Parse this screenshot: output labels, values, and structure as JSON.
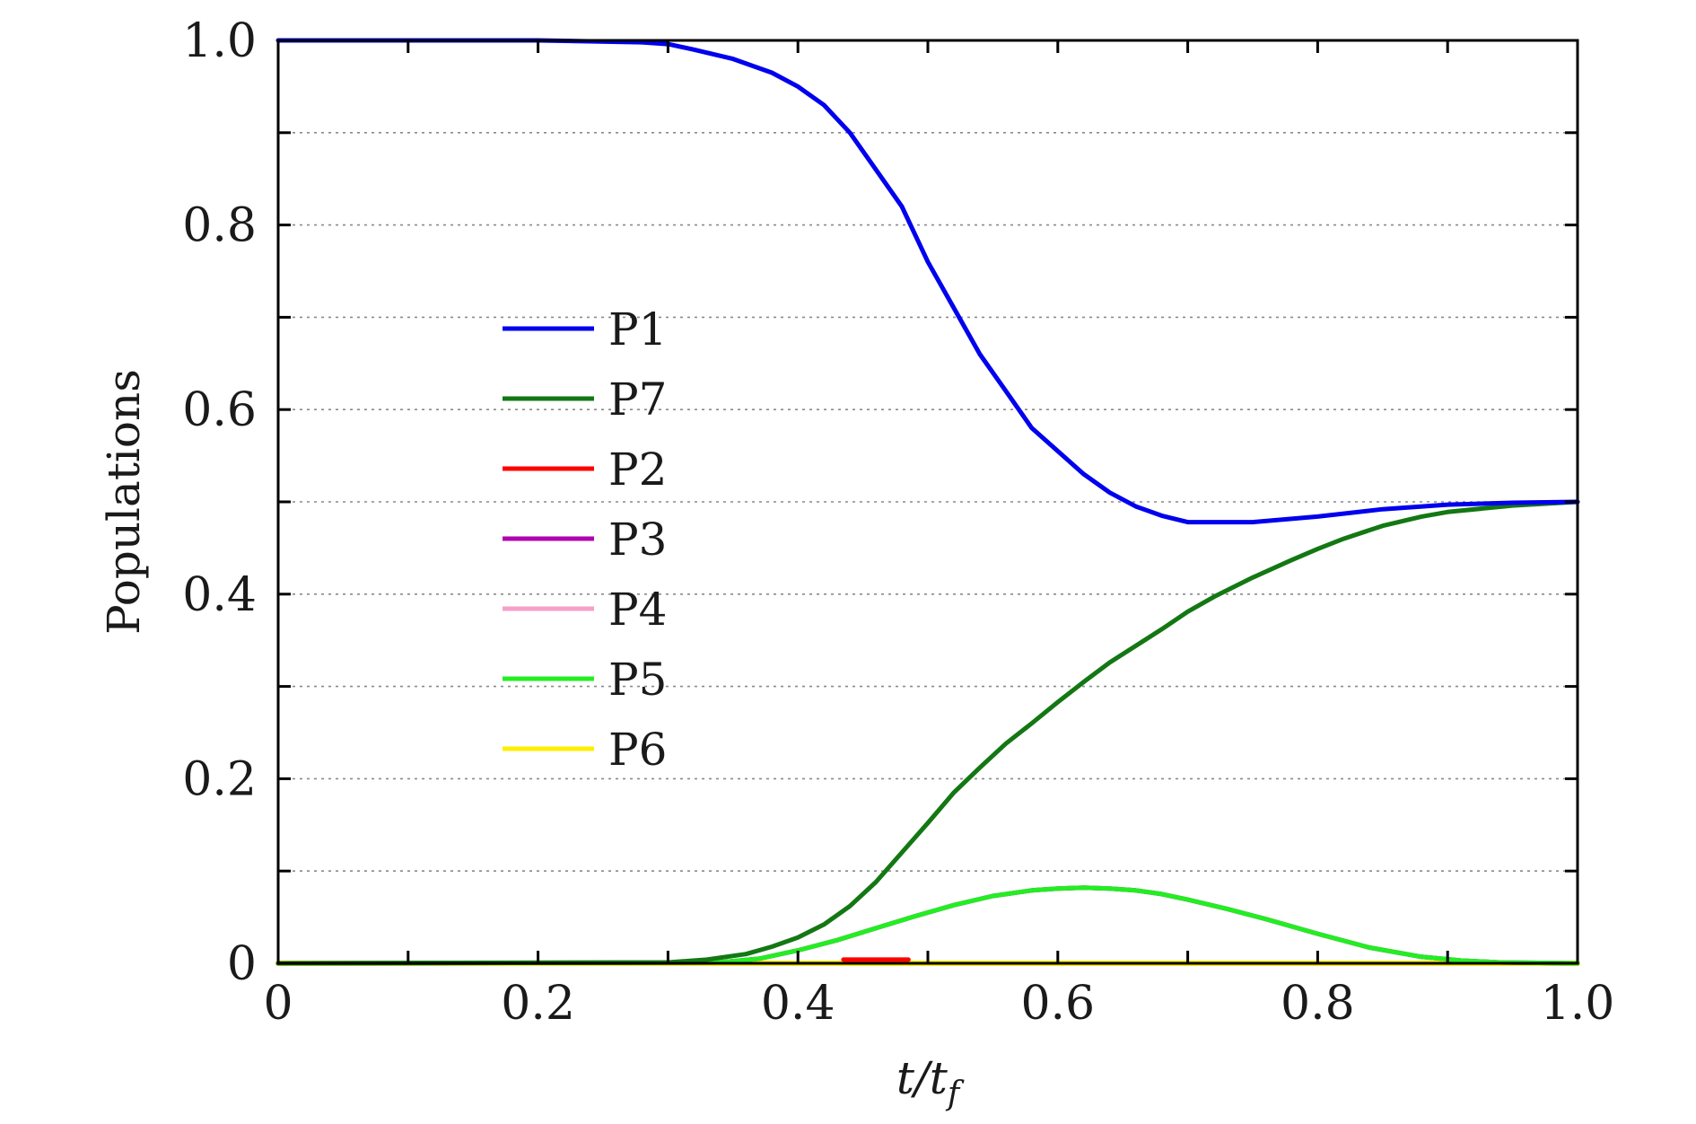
{
  "chart_data": {
    "type": "line",
    "xlabel": {
      "main": "t/t",
      "sub": "f"
    },
    "ylabel": "Populations",
    "xlim": [
      0,
      1.0
    ],
    "ylim": [
      0,
      1.0
    ],
    "x_ticks": [
      0,
      0.1,
      0.2,
      0.3,
      0.4,
      0.5,
      0.6,
      0.7,
      0.8,
      0.9,
      1.0
    ],
    "x_tick_labels": [
      "0",
      "0.2",
      "0.4",
      "0.6",
      "0.8",
      "1.0"
    ],
    "x_tick_label_values": [
      0,
      0.2,
      0.4,
      0.6,
      0.8,
      1.0
    ],
    "y_ticks": [
      0,
      0.1,
      0.2,
      0.3,
      0.4,
      0.5,
      0.6,
      0.7,
      0.8,
      0.9,
      1.0
    ],
    "y_tick_labels": [
      "0",
      "0.2",
      "0.4",
      "0.6",
      "0.8",
      "1.0"
    ],
    "y_tick_label_values": [
      0,
      0.2,
      0.4,
      0.6,
      0.8,
      1.0
    ],
    "grid": "horizontal dotted",
    "legend_position": "center-left",
    "series": [
      {
        "name": "P1",
        "color": "#0000ee",
        "x": [
          0,
          0.1,
          0.2,
          0.28,
          0.3,
          0.32,
          0.35,
          0.38,
          0.4,
          0.42,
          0.44,
          0.46,
          0.48,
          0.5,
          0.52,
          0.54,
          0.56,
          0.58,
          0.6,
          0.62,
          0.64,
          0.66,
          0.68,
          0.7,
          0.75,
          0.8,
          0.85,
          0.9,
          0.95,
          1.0
        ],
        "y": [
          1.0,
          1.0,
          1.0,
          0.998,
          0.996,
          0.99,
          0.98,
          0.965,
          0.95,
          0.93,
          0.9,
          0.86,
          0.82,
          0.76,
          0.71,
          0.66,
          0.62,
          0.58,
          0.555,
          0.53,
          0.51,
          0.495,
          0.485,
          0.478,
          0.478,
          0.484,
          0.492,
          0.497,
          0.499,
          0.5
        ]
      },
      {
        "name": "P7",
        "color": "#137813",
        "x": [
          0,
          0.3,
          0.33,
          0.36,
          0.38,
          0.4,
          0.42,
          0.44,
          0.46,
          0.48,
          0.5,
          0.52,
          0.54,
          0.56,
          0.58,
          0.6,
          0.62,
          0.64,
          0.66,
          0.68,
          0.7,
          0.72,
          0.75,
          0.78,
          0.8,
          0.82,
          0.85,
          0.88,
          0.9,
          0.95,
          1.0
        ],
        "y": [
          0,
          0.001,
          0.004,
          0.01,
          0.018,
          0.028,
          0.042,
          0.062,
          0.088,
          0.12,
          0.152,
          0.185,
          0.212,
          0.238,
          0.26,
          0.283,
          0.305,
          0.326,
          0.344,
          0.362,
          0.381,
          0.397,
          0.418,
          0.437,
          0.449,
          0.46,
          0.474,
          0.484,
          0.489,
          0.496,
          0.5
        ]
      },
      {
        "name": "P2",
        "color": "#ff0000",
        "x": [
          0.435,
          0.485
        ],
        "y": [
          0.004,
          0.004
        ]
      },
      {
        "name": "P3",
        "color": "#b000b0",
        "x": [
          0,
          0.34,
          0.37,
          0.4,
          0.43,
          0.46,
          0.49,
          0.52,
          0.55,
          0.58,
          0.6,
          0.62,
          0.64,
          0.66,
          0.68,
          0.7,
          0.73,
          0.76,
          0.8,
          0.84,
          0.88,
          0.91,
          0.94,
          1.0
        ],
        "y": [
          0,
          0.001,
          0.005,
          0.014,
          0.025,
          0.038,
          0.051,
          0.063,
          0.073,
          0.079,
          0.081,
          0.082,
          0.081,
          0.079,
          0.075,
          0.069,
          0.059,
          0.048,
          0.032,
          0.017,
          0.007,
          0.003,
          0.001,
          0
        ]
      },
      {
        "name": "P4",
        "color": "#f5a0c8",
        "x": [
          0,
          0.34,
          0.37,
          0.4,
          0.43,
          0.46,
          0.49,
          0.52,
          0.55,
          0.58,
          0.6,
          0.62,
          0.64,
          0.66,
          0.68,
          0.7,
          0.73,
          0.76,
          0.8,
          0.84,
          0.88,
          0.91,
          0.94,
          1.0
        ],
        "y": [
          0,
          0.001,
          0.005,
          0.014,
          0.025,
          0.038,
          0.051,
          0.063,
          0.073,
          0.079,
          0.081,
          0.082,
          0.081,
          0.079,
          0.075,
          0.069,
          0.059,
          0.048,
          0.032,
          0.017,
          0.007,
          0.003,
          0.001,
          0
        ]
      },
      {
        "name": "P5",
        "color": "#22ee22",
        "x": [
          0,
          0.34,
          0.37,
          0.4,
          0.43,
          0.46,
          0.49,
          0.52,
          0.55,
          0.58,
          0.6,
          0.62,
          0.64,
          0.66,
          0.68,
          0.7,
          0.73,
          0.76,
          0.8,
          0.84,
          0.88,
          0.91,
          0.94,
          1.0
        ],
        "y": [
          0,
          0.001,
          0.005,
          0.014,
          0.025,
          0.038,
          0.051,
          0.063,
          0.073,
          0.079,
          0.081,
          0.082,
          0.081,
          0.079,
          0.075,
          0.069,
          0.059,
          0.048,
          0.032,
          0.017,
          0.007,
          0.003,
          0.001,
          0
        ]
      },
      {
        "name": "P6",
        "color": "#ffee00",
        "x": [
          0,
          1.0
        ],
        "y": [
          0,
          0
        ]
      }
    ],
    "legend_order": [
      "P1",
      "P7",
      "P2",
      "P3",
      "P4",
      "P5",
      "P6"
    ]
  }
}
